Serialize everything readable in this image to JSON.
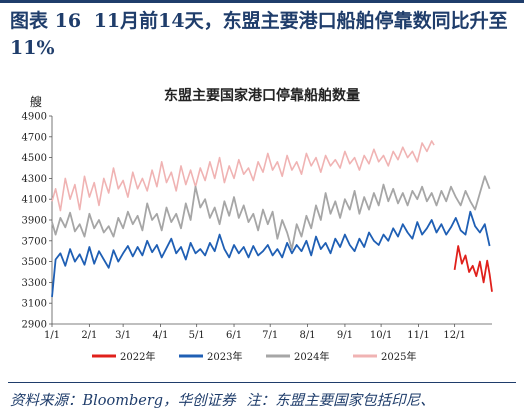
{
  "header": {
    "figure_label": "图表 16",
    "title": "11月前14天，东盟主要港口船舶停靠数同比升至11%"
  },
  "footer": {
    "source": "资料来源：Bloomberg，华创证券",
    "note": "注：东盟主要国家包括印尼、"
  },
  "chart_data": {
    "type": "line",
    "title": "东盟主要国家港口停靠船舶数量",
    "ylabel": "艘",
    "ylim": [
      2900,
      4900
    ],
    "yticks": [
      2900,
      3100,
      3300,
      3500,
      3700,
      3900,
      4100,
      4300,
      4500,
      4700,
      4900
    ],
    "x_ticks": [
      "1/1",
      "2/1",
      "3/1",
      "4/1",
      "5/1",
      "6/1",
      "7/1",
      "8/1",
      "9/1",
      "10/1",
      "11/1",
      "12/1"
    ],
    "x_tick_day": [
      1,
      32,
      60,
      91,
      121,
      152,
      182,
      213,
      244,
      274,
      305,
      335
    ],
    "day_range": [
      1,
      366
    ],
    "grid": false,
    "legend_position": "bottom",
    "series": [
      {
        "name": "2022年",
        "color": "#e0201b",
        "x": [
          335,
          338,
          341,
          344,
          347,
          350,
          353,
          356,
          359,
          362,
          364,
          366
        ],
        "y": [
          3420,
          3650,
          3480,
          3560,
          3400,
          3460,
          3360,
          3500,
          3300,
          3510,
          3380,
          3210
        ]
      },
      {
        "name": "2023年",
        "color": "#1f5fb4",
        "x": [
          1,
          4,
          8,
          12,
          16,
          20,
          24,
          28,
          32,
          36,
          40,
          44,
          48,
          52,
          56,
          60,
          64,
          68,
          72,
          76,
          80,
          84,
          88,
          92,
          96,
          100,
          104,
          108,
          112,
          116,
          120,
          124,
          128,
          132,
          136,
          140,
          144,
          148,
          152,
          156,
          160,
          164,
          168,
          172,
          176,
          180,
          184,
          188,
          192,
          196,
          200,
          204,
          208,
          212,
          216,
          220,
          224,
          228,
          232,
          236,
          240,
          244,
          248,
          252,
          256,
          260,
          264,
          268,
          272,
          276,
          280,
          284,
          288,
          292,
          296,
          300,
          304,
          308,
          312,
          316,
          320,
          324,
          328,
          332,
          336,
          340,
          344,
          348,
          352,
          356,
          360,
          364
        ],
        "y": [
          3160,
          3520,
          3580,
          3460,
          3620,
          3500,
          3570,
          3470,
          3640,
          3480,
          3600,
          3520,
          3440,
          3610,
          3500,
          3580,
          3650,
          3550,
          3640,
          3560,
          3700,
          3590,
          3660,
          3540,
          3630,
          3720,
          3580,
          3640,
          3520,
          3680,
          3580,
          3620,
          3560,
          3680,
          3600,
          3760,
          3620,
          3540,
          3660,
          3580,
          3640,
          3540,
          3650,
          3560,
          3600,
          3660,
          3560,
          3620,
          3540,
          3680,
          3580,
          3660,
          3600,
          3700,
          3560,
          3740,
          3620,
          3680,
          3580,
          3720,
          3640,
          3760,
          3660,
          3600,
          3720,
          3640,
          3780,
          3700,
          3660,
          3760,
          3700,
          3820,
          3740,
          3860,
          3780,
          3720,
          3880,
          3760,
          3820,
          3900,
          3780,
          3860,
          3760,
          3830,
          3920,
          3800,
          3760,
          3980,
          3840,
          3780,
          3860,
          3650
        ]
      },
      {
        "name": "2024年",
        "color": "#a6a6a6",
        "x": [
          1,
          4,
          8,
          12,
          16,
          20,
          24,
          28,
          32,
          36,
          40,
          44,
          48,
          52,
          56,
          60,
          64,
          68,
          72,
          76,
          80,
          84,
          88,
          92,
          96,
          100,
          104,
          108,
          112,
          116,
          120,
          124,
          128,
          132,
          136,
          140,
          144,
          148,
          152,
          156,
          160,
          164,
          168,
          172,
          176,
          180,
          184,
          188,
          192,
          196,
          200,
          204,
          208,
          212,
          216,
          220,
          224,
          228,
          232,
          236,
          240,
          244,
          248,
          252,
          256,
          260,
          264,
          268,
          272,
          276,
          280,
          284,
          288,
          292,
          296,
          300,
          304,
          308,
          312,
          316,
          320,
          324,
          328,
          332,
          336,
          340,
          344,
          348,
          352,
          356,
          360,
          364
        ],
        "y": [
          3880,
          3760,
          3920,
          3830,
          3970,
          3790,
          3860,
          3740,
          3960,
          3820,
          3900,
          3780,
          3840,
          3740,
          3920,
          3820,
          3980,
          3860,
          3940,
          3800,
          4060,
          3900,
          3960,
          3800,
          4020,
          3880,
          3960,
          3820,
          4060,
          3900,
          4220,
          4020,
          4100,
          3920,
          4020,
          3860,
          4080,
          3940,
          4120,
          3920,
          4040,
          3880,
          3960,
          3800,
          4000,
          3860,
          3980,
          3720,
          3900,
          3780,
          3620,
          3860,
          3740,
          3940,
          3820,
          4040,
          3900,
          4160,
          3960,
          4080,
          3920,
          4100,
          4000,
          4180,
          3960,
          4120,
          4000,
          4160,
          4040,
          4240,
          4080,
          4200,
          4060,
          4160,
          4040,
          4180,
          4100,
          4220,
          4080,
          4160,
          4040,
          4180,
          4080,
          4220,
          4120,
          4040,
          4180,
          4080,
          4000,
          4160,
          4320,
          4200
        ]
      },
      {
        "name": "2025年",
        "color": "#f0b3b3",
        "x": [
          1,
          4,
          8,
          12,
          16,
          20,
          24,
          28,
          32,
          36,
          40,
          44,
          48,
          52,
          56,
          60,
          64,
          68,
          72,
          76,
          80,
          84,
          88,
          92,
          96,
          100,
          104,
          108,
          112,
          116,
          120,
          124,
          128,
          132,
          136,
          140,
          144,
          148,
          152,
          156,
          160,
          164,
          168,
          172,
          176,
          180,
          184,
          188,
          192,
          196,
          200,
          204,
          208,
          212,
          216,
          220,
          224,
          228,
          232,
          236,
          240,
          244,
          248,
          252,
          256,
          260,
          264,
          268,
          272,
          276,
          280,
          284,
          288,
          292,
          296,
          300,
          304,
          308,
          312,
          316,
          318
        ],
        "y": [
          4080,
          4200,
          3990,
          4300,
          4100,
          4240,
          4000,
          4320,
          4120,
          4260,
          4040,
          4300,
          4160,
          4400,
          4200,
          4280,
          4120,
          4360,
          4200,
          4300,
          4180,
          4380,
          4220,
          4460,
          4260,
          4360,
          4180,
          4420,
          4240,
          4380,
          4220,
          4400,
          4280,
          4460,
          4300,
          4500,
          4260,
          4420,
          4300,
          4480,
          4340,
          4400,
          4280,
          4460,
          4360,
          4540,
          4380,
          4460,
          4320,
          4520,
          4380,
          4460,
          4340,
          4540,
          4420,
          4500,
          4360,
          4520,
          4420,
          4480,
          4400,
          4560,
          4440,
          4500,
          4380,
          4520,
          4440,
          4580,
          4460,
          4520,
          4420,
          4560,
          4480,
          4600,
          4500,
          4560,
          4460,
          4640,
          4560,
          4660,
          4620
        ]
      }
    ]
  }
}
